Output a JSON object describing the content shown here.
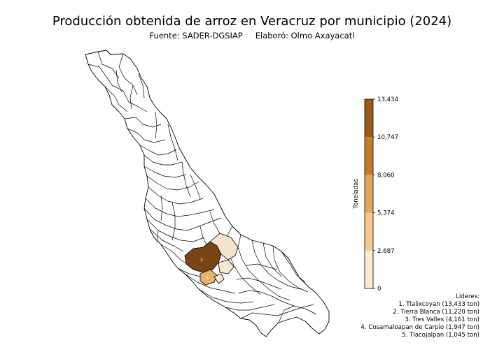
{
  "title": "Producción obtenida de arroz en Veracruz por municipio (2024)",
  "subtitle": {
    "source": "Fuente: SADER-DGSIAP",
    "author": "Elaboró: Olmo Axayacatl"
  },
  "colorbar": {
    "label": "Toneladas",
    "min": 0,
    "max": 13434,
    "ticks": [
      "0",
      "2,687",
      "5,374",
      "8,060",
      "10,747",
      "13,434"
    ],
    "tick_values": [
      0,
      2687,
      5374,
      8060,
      10747,
      13434
    ],
    "colors": [
      "#fbebd6",
      "#f5c88f",
      "#e3a55b",
      "#c57c29",
      "#9a5a18",
      "#6e3f11"
    ]
  },
  "map": {
    "state": "Veracruz",
    "base_fill": "#ffffff",
    "border_color": "#000000",
    "highlighted": [
      {
        "rank": 1,
        "name": "Tlalixcoyan",
        "value": 13433,
        "color": "#f3e3cf",
        "label": "1"
      },
      {
        "rank": 2,
        "name": "Tierra Blanca",
        "value": 11220,
        "color": "#7a4515",
        "label": "2"
      },
      {
        "rank": 3,
        "name": "Tres Valles",
        "value": 4161,
        "color": "#e8b26d",
        "label": "3"
      },
      {
        "rank": 4,
        "name": "Cosamaloapan de Carpio",
        "value": 1947,
        "color": "#f7e6cf",
        "label": "4"
      },
      {
        "rank": 5,
        "name": "Tlacojalpan",
        "value": 1045,
        "color": "#f7e6cf",
        "label": "5"
      }
    ]
  },
  "leaders": {
    "heading": "Líderes:",
    "items": [
      "1. Tlalixcoyan (13,433 ton)",
      "2. Tierra Blanca (11,220 ton)",
      "3. Tres Valles (4,161 ton)",
      "4. Cosamaloapan de Carpio (1,947 ton)",
      "5. Tlacojalpan (1,045 ton)"
    ]
  }
}
